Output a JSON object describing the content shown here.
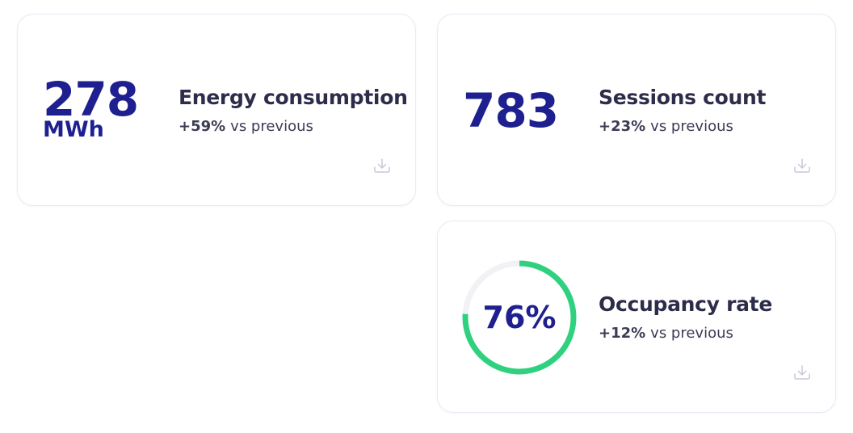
{
  "cards": [
    {
      "value": 278,
      "unit": "MWh",
      "title": "Energy consumption",
      "change": "+59%",
      "comparison": "vs previous"
    },
    {
      "value": 783,
      "title": "Sessions count",
      "change": "+23%",
      "comparison": "vs previous"
    },
    {
      "value": 76,
      "value_label": "76%",
      "title": "Occupancy rate",
      "change": "+12%",
      "comparison": "vs previous"
    }
  ]
}
